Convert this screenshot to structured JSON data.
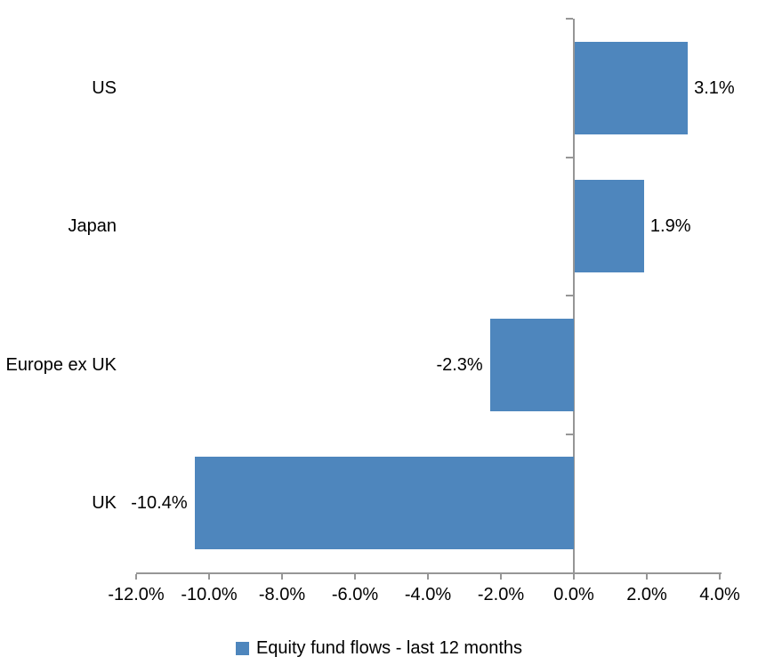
{
  "chart_data": {
    "type": "bar",
    "orientation": "horizontal",
    "categories": [
      "US",
      "Japan",
      "Europe ex UK",
      "UK"
    ],
    "series": [
      {
        "name": "Equity fund flows - last 12 months",
        "values": [
          3.1,
          1.9,
          -2.3,
          -10.4
        ],
        "data_labels": [
          "3.1%",
          "1.9%",
          "-2.3%",
          "-10.4%"
        ]
      }
    ],
    "xlim": [
      -12,
      4
    ],
    "x_ticks": [
      -12,
      -10,
      -8,
      -6,
      -4,
      -2,
      0,
      2,
      4
    ],
    "x_tick_labels": [
      "-12.0%",
      "-10.0%",
      "-8.0%",
      "-6.0%",
      "-4.0%",
      "-2.0%",
      "0.0%",
      "2.0%",
      "4.0%"
    ],
    "grid": false,
    "legend_position": "bottom",
    "colors": {
      "bar": "#4e86bd",
      "axis": "#969696",
      "text": "#000000",
      "background": "#ffffff"
    }
  },
  "legend": {
    "swatch_color": "#4e86bd",
    "label": "Equity fund flows - last 12 months"
  }
}
